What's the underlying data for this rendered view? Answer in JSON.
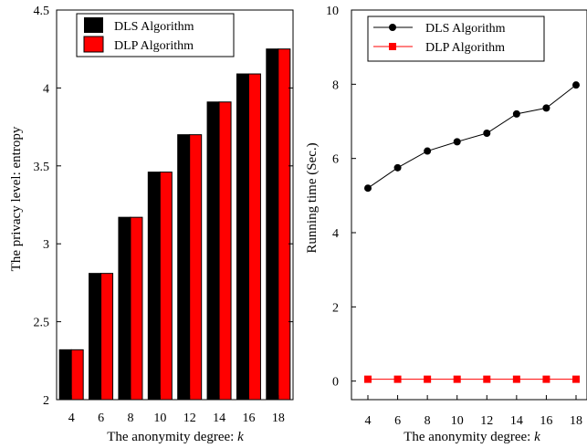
{
  "chart_data": [
    {
      "type": "bar",
      "categories": [
        "4",
        "6",
        "8",
        "10",
        "12",
        "14",
        "16",
        "18"
      ],
      "series": [
        {
          "name": "DLS Algorithm",
          "color": "#000000",
          "values": [
            2.32,
            2.81,
            3.17,
            3.46,
            3.7,
            3.91,
            4.09,
            4.25
          ]
        },
        {
          "name": "DLP Algorithm",
          "color": "#ff0000",
          "values": [
            2.32,
            2.81,
            3.17,
            3.46,
            3.7,
            3.91,
            4.09,
            4.25
          ]
        }
      ],
      "xlabel_prefix": "The anonymity degree: ",
      "xlabel_var": "k",
      "ylabel": "The privacy level: entropy",
      "ylim": [
        2,
        4.5
      ],
      "yticks": [
        "2",
        "2.5",
        "3",
        "3.5",
        "4",
        "4.5"
      ],
      "ytick_values": [
        2,
        2.5,
        3,
        3.5,
        4,
        4.5
      ],
      "legend_position": "top-left",
      "grid": false
    },
    {
      "type": "line",
      "x": [
        4,
        6,
        8,
        10,
        12,
        14,
        16,
        18
      ],
      "xticks": [
        "4",
        "6",
        "8",
        "10",
        "12",
        "14",
        "16",
        "18"
      ],
      "series": [
        {
          "name": "DLS Algorithm",
          "color": "#000000",
          "marker": "circle",
          "values": [
            5.2,
            5.75,
            6.2,
            6.45,
            6.68,
            7.2,
            7.36,
            7.98
          ]
        },
        {
          "name": "DLP Algorithm",
          "color": "#ff0000",
          "marker": "square",
          "values": [
            0.05,
            0.05,
            0.05,
            0.05,
            0.05,
            0.05,
            0.05,
            0.05
          ]
        }
      ],
      "xlabel_prefix": "The anonymity degree: ",
      "xlabel_var": "k",
      "ylabel": "Running time (Sec.)",
      "ylim": [
        -0.5,
        10
      ],
      "yticks": [
        "0",
        "2",
        "4",
        "6",
        "8",
        "10"
      ],
      "ytick_values": [
        0,
        2,
        4,
        6,
        8,
        10
      ],
      "legend_position": "top",
      "grid": false
    }
  ]
}
